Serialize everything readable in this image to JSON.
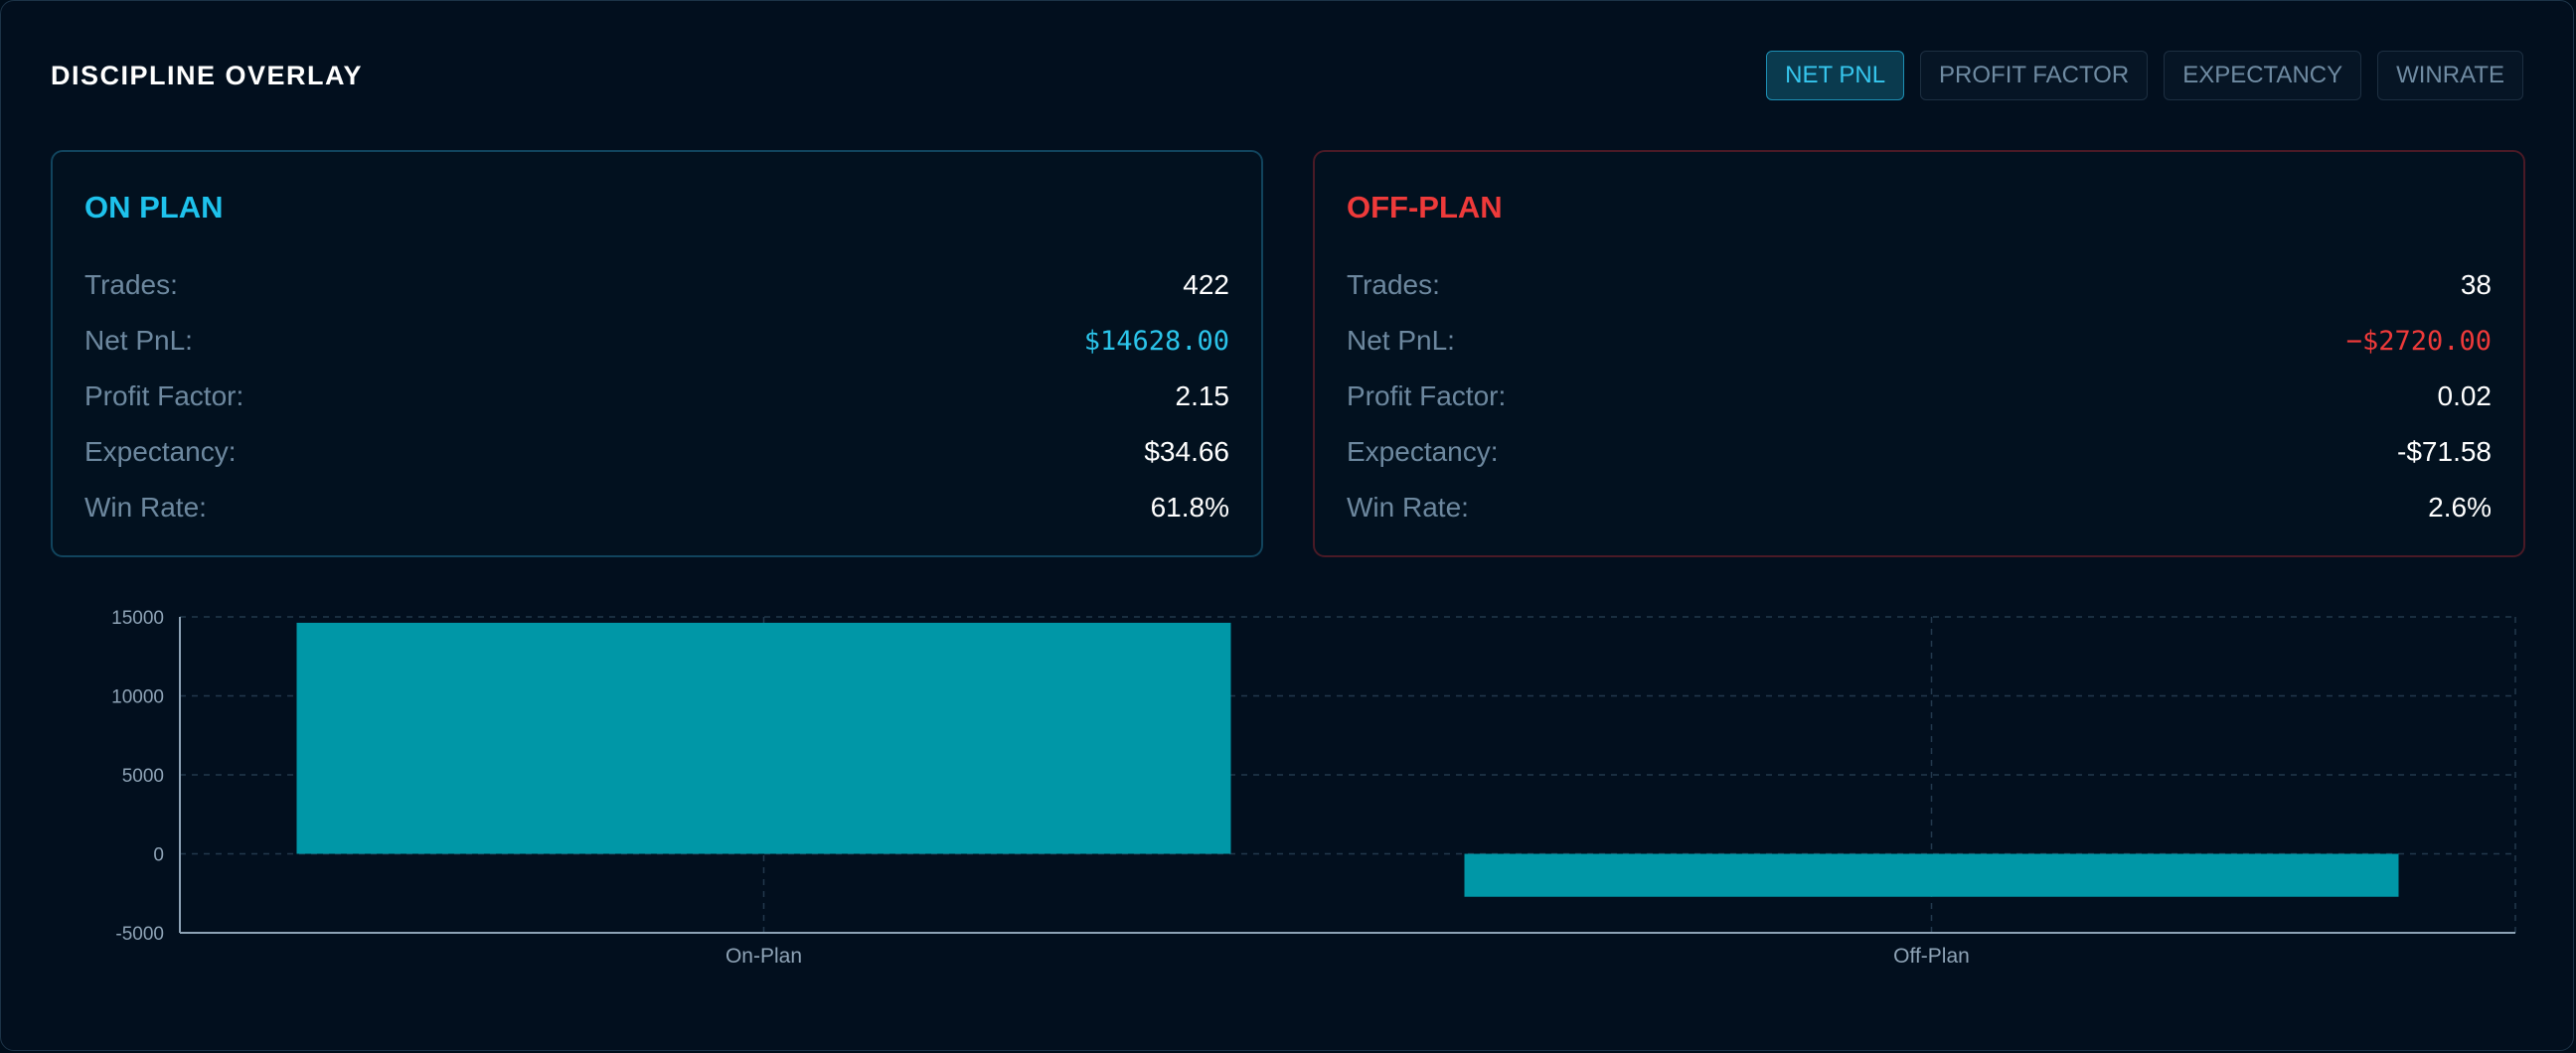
{
  "header": {
    "title": "DISCIPLINE OVERLAY",
    "tabs": [
      {
        "label": "NET PNL",
        "active": true
      },
      {
        "label": "PROFIT FACTOR",
        "active": false
      },
      {
        "label": "EXPECTANCY",
        "active": false
      },
      {
        "label": "WINRATE",
        "active": false
      }
    ]
  },
  "cards": {
    "on_plan": {
      "title": "ON PLAN",
      "accent": "#1ec2ec",
      "rows": [
        {
          "label": "Trades:",
          "value": "422"
        },
        {
          "label": "Net PnL:",
          "value": "$14628.00"
        },
        {
          "label": "Profit Factor:",
          "value": "2.15"
        },
        {
          "label": "Expectancy:",
          "value": "$34.66"
        },
        {
          "label": "Win Rate:",
          "value": "61.8%"
        }
      ]
    },
    "off_plan": {
      "title": "OFF-PLAN",
      "accent": "#ee3a3a",
      "rows": [
        {
          "label": "Trades:",
          "value": "38"
        },
        {
          "label": "Net PnL:",
          "value": "−$2720.00"
        },
        {
          "label": "Profit Factor:",
          "value": "0.02"
        },
        {
          "label": "Expectancy:",
          "value": "-$71.58"
        },
        {
          "label": "Win Rate:",
          "value": "2.6%"
        }
      ]
    }
  },
  "chart_data": {
    "type": "bar",
    "categories": [
      "On-Plan",
      "Off-Plan"
    ],
    "values": [
      14628,
      -2720
    ],
    "ylim": [
      -5000,
      15000
    ],
    "yticks": [
      15000,
      10000,
      5000,
      0,
      -5000
    ],
    "grid": true,
    "bar_color": "#0097a7"
  }
}
